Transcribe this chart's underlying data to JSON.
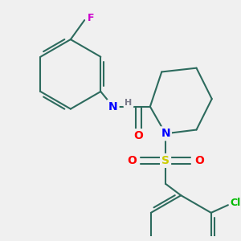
{
  "background_color": "#f0f0f0",
  "line_color": "#2d6b5e",
  "bond_width": 1.5,
  "atom_colors": {
    "N": "#0000ff",
    "O": "#ff0000",
    "S": "#cccc00",
    "F": "#cc00cc",
    "Cl": "#00bb00",
    "H": "#7a7a8a",
    "C": "#2d6b5e"
  },
  "font_size": 8,
  "fig_width": 3.0,
  "fig_height": 3.0,
  "dpi": 100
}
